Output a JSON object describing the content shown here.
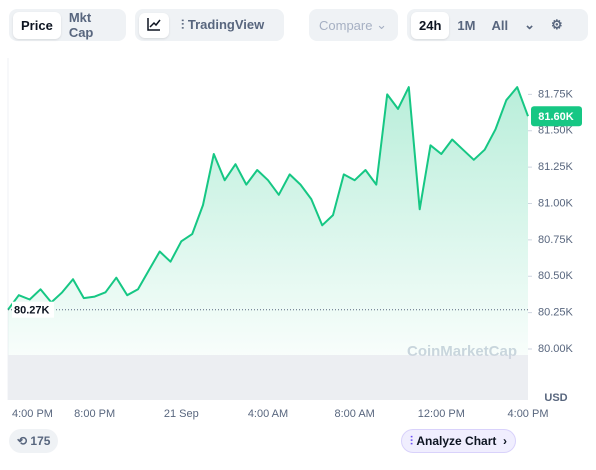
{
  "toolbar": {
    "tabs": [
      "Price",
      "Mkt Cap"
    ],
    "tradingview": "TradingView",
    "compare": "Compare",
    "ranges": [
      "24h",
      "1M",
      "All"
    ]
  },
  "chart_data": {
    "type": "line",
    "categories": [
      "4:00 PM",
      null,
      null,
      null,
      null,
      null,
      null,
      null,
      "8:00 PM",
      null,
      null,
      null,
      null,
      null,
      null,
      null,
      "21 Sep",
      null,
      null,
      null,
      null,
      null,
      null,
      null,
      "4:00 AM",
      null,
      null,
      null,
      null,
      null,
      null,
      null,
      "8:00 AM",
      null,
      null,
      null,
      null,
      null,
      null,
      null,
      "12:00 PM",
      null,
      null,
      null,
      null,
      null,
      null,
      null,
      "4:00 PM"
    ],
    "values": [
      80270,
      80370,
      80340,
      80410,
      80320,
      80390,
      80480,
      80350,
      80360,
      80390,
      80490,
      80370,
      80410,
      80540,
      80670,
      80600,
      80740,
      80790,
      80990,
      81340,
      81160,
      81270,
      81130,
      81230,
      81160,
      81060,
      81200,
      81130,
      81030,
      80850,
      80920,
      81200,
      81160,
      81230,
      81130,
      81750,
      81650,
      81800,
      80960,
      81400,
      81340,
      81440,
      81370,
      81300,
      81370,
      81510,
      81710,
      81800,
      81600
    ],
    "color": "#16c784",
    "ylim": [
      80000,
      82000
    ],
    "yticks": [
      {
        "value": 80000,
        "label": "80.00K"
      },
      {
        "value": 80250,
        "label": "80.25K"
      },
      {
        "value": 80500,
        "label": "80.50K"
      },
      {
        "value": 80750,
        "label": "80.75K"
      },
      {
        "value": 81000,
        "label": "81.00K"
      },
      {
        "value": 81250,
        "label": "81.25K"
      },
      {
        "value": 81500,
        "label": "81.50K"
      },
      {
        "value": 81750,
        "label": "81.75K"
      }
    ],
    "current": {
      "value": 81600,
      "label": "81.60K"
    },
    "reference": {
      "value": 80270,
      "label": "80.27K"
    },
    "unit": "USD",
    "watermark": "CoinMarketCap"
  },
  "footer": {
    "comments": "175",
    "analyze": "Analyze Chart"
  }
}
